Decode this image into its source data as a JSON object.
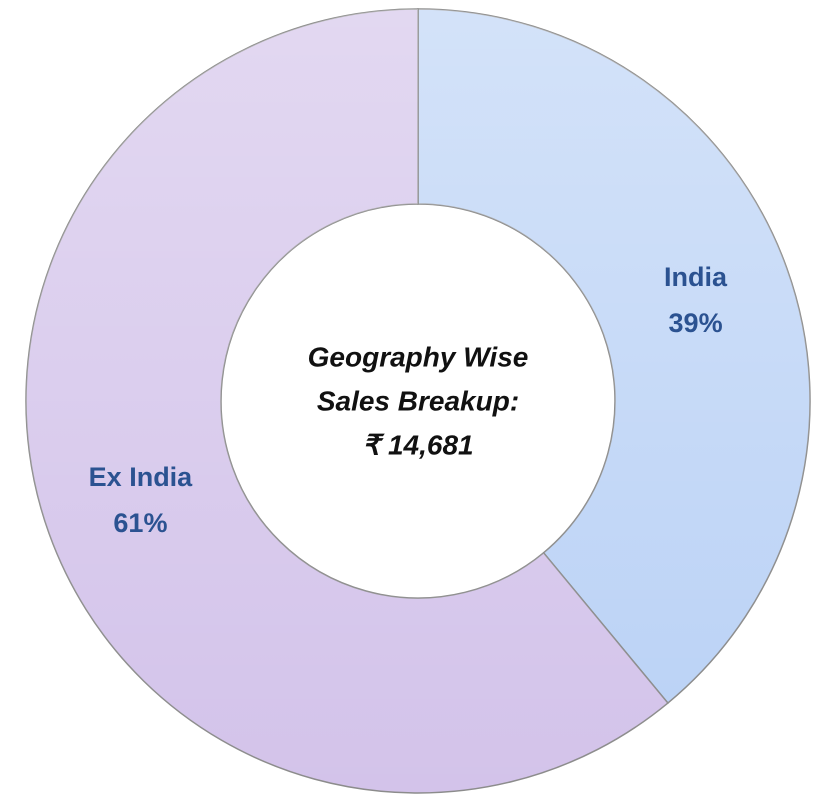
{
  "chart_data": {
    "type": "donut",
    "center_text": [
      "Geography Wise",
      "Sales Breakup:",
      "₹ 14,681"
    ],
    "categories": [
      "India",
      "Ex India"
    ],
    "values": [
      39,
      61
    ],
    "value_labels": [
      "39%",
      "61%"
    ],
    "colors": [
      "#bcd3f6",
      "#d3c3ea"
    ]
  }
}
